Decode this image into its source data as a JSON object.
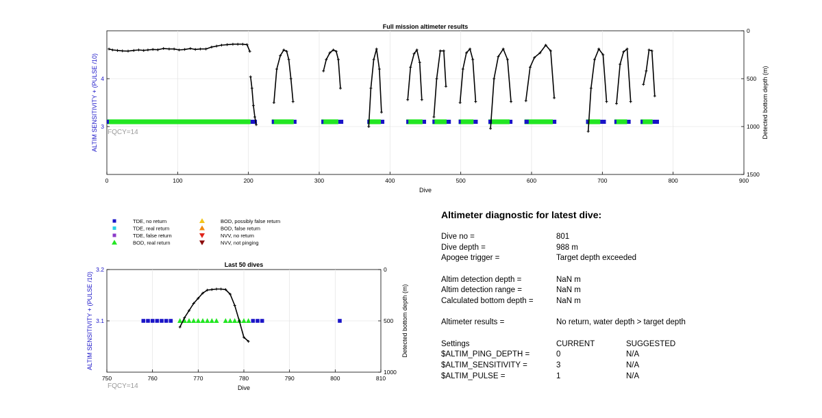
{
  "chart_data": [
    {
      "id": "full",
      "type": "scatter",
      "title": "Full mission altimeter results",
      "xlabel": "Dive",
      "ylabel": "ALTIM SENSITIVITY + (PULSE /10)",
      "y2label": "Detected bottom depth (m)",
      "xlim": [
        0,
        900
      ],
      "ylim": [
        2,
        5
      ],
      "y2lim": [
        1500,
        0
      ],
      "xticks": [
        0,
        100,
        200,
        300,
        400,
        500,
        600,
        700,
        800,
        900
      ],
      "yticks": [
        3,
        4
      ],
      "y2ticks": [
        0,
        500,
        1000,
        1500
      ],
      "grid": true,
      "annotation": "FQCY=14",
      "bod_real_return_segments": [
        [
          0,
          203
        ],
        [
          233,
          264
        ],
        [
          303,
          327
        ],
        [
          368,
          387
        ],
        [
          423,
          446
        ],
        [
          460,
          480
        ],
        [
          497,
          518
        ],
        [
          539,
          569
        ],
        [
          590,
          630
        ],
        [
          677,
          697
        ],
        [
          717,
          735
        ],
        [
          754,
          771
        ]
      ],
      "tde_no_return_segments": [
        [
          0,
          2
        ],
        [
          203,
          212
        ],
        [
          233,
          236
        ],
        [
          264,
          268
        ],
        [
          303,
          306
        ],
        [
          327,
          334
        ],
        [
          368,
          371
        ],
        [
          387,
          392
        ],
        [
          423,
          426
        ],
        [
          446,
          451
        ],
        [
          460,
          463
        ],
        [
          480,
          486
        ],
        [
          497,
          500
        ],
        [
          518,
          524
        ],
        [
          539,
          544
        ],
        [
          569,
          573
        ],
        [
          590,
          596
        ],
        [
          630,
          635
        ],
        [
          677,
          680
        ],
        [
          697,
          705
        ],
        [
          717,
          720
        ],
        [
          735,
          740
        ],
        [
          754,
          757
        ],
        [
          771,
          780
        ]
      ],
      "bottom_depth": [
        {
          "x": [
            3,
            8,
            15,
            22,
            30,
            38,
            45,
            52,
            58,
            65,
            72,
            80,
            88,
            95,
            102,
            110,
            118,
            125,
            132,
            140,
            148,
            155,
            162,
            170,
            178,
            185,
            192,
            198,
            202
          ],
          "y": [
            190,
            200,
            205,
            210,
            212,
            205,
            200,
            205,
            200,
            195,
            198,
            185,
            190,
            190,
            200,
            195,
            185,
            195,
            190,
            190,
            170,
            160,
            150,
            145,
            140,
            140,
            140,
            145,
            215
          ]
        },
        {
          "x": [
            203,
            205,
            207,
            209,
            211
          ],
          "y": [
            480,
            600,
            780,
            900,
            980
          ]
        },
        {
          "x": [
            236,
            240,
            245,
            250,
            254,
            257,
            260,
            263
          ],
          "y": [
            750,
            400,
            260,
            200,
            215,
            300,
            500,
            740
          ]
        },
        {
          "x": [
            306,
            310,
            315,
            320,
            324,
            327,
            330
          ],
          "y": [
            420,
            300,
            230,
            200,
            215,
            300,
            600
          ]
        },
        {
          "x": [
            370,
            373,
            377,
            381,
            385,
            388
          ],
          "y": [
            1000,
            600,
            300,
            190,
            400,
            850
          ]
        },
        {
          "x": [
            425,
            429,
            434,
            438,
            442,
            445
          ],
          "y": [
            720,
            380,
            240,
            200,
            330,
            720
          ]
        },
        {
          "x": [
            462,
            466,
            471,
            476,
            479
          ],
          "y": [
            900,
            500,
            210,
            210,
            580
          ]
        },
        {
          "x": [
            499,
            503,
            508,
            513,
            517,
            521
          ],
          "y": [
            750,
            400,
            230,
            190,
            300,
            740
          ]
        },
        {
          "x": [
            542,
            547,
            553,
            560,
            566,
            571
          ],
          "y": [
            1020,
            500,
            270,
            190,
            300,
            740
          ]
        },
        {
          "x": [
            592,
            598,
            604,
            612,
            620,
            627,
            632
          ],
          "y": [
            730,
            380,
            280,
            230,
            150,
            210,
            700
          ]
        },
        {
          "x": [
            680,
            684,
            689,
            695,
            701,
            706
          ],
          "y": [
            1050,
            600,
            300,
            190,
            250,
            740
          ]
        },
        {
          "x": [
            720,
            725,
            730,
            735,
            740
          ],
          "y": [
            760,
            350,
            220,
            190,
            740
          ]
        },
        {
          "x": [
            758,
            762,
            766,
            770,
            774
          ],
          "y": [
            560,
            420,
            200,
            210,
            680
          ]
        }
      ]
    },
    {
      "id": "last50",
      "type": "scatter",
      "title": "Last 50 dives",
      "xlabel": "Dive",
      "ylabel": "ALTIM SENSITIVITY + (PULSE /10)",
      "y2label": "Detected bottom depth (m)",
      "xlim": [
        750,
        810
      ],
      "ylim": [
        3.0,
        3.2
      ],
      "y2lim": [
        1000,
        0
      ],
      "xticks": [
        750,
        760,
        770,
        780,
        790,
        800,
        810
      ],
      "yticks": [
        3.1,
        3.2
      ],
      "y2ticks": [
        0,
        500,
        1000
      ],
      "grid": true,
      "annotation": "FQCY=14",
      "tde_no_return": {
        "x": [
          758,
          759,
          760,
          761,
          762,
          763,
          764,
          782,
          783,
          784,
          801
        ],
        "y": [
          3.1,
          3.1,
          3.1,
          3.1,
          3.1,
          3.1,
          3.1,
          3.1,
          3.1,
          3.1,
          3.1
        ]
      },
      "bod_real_return": {
        "x": [
          766,
          767,
          768,
          769,
          770,
          771,
          772,
          773,
          774,
          776,
          777,
          778,
          779,
          780,
          781
        ],
        "y": [
          3.1,
          3.1,
          3.1,
          3.1,
          3.1,
          3.1,
          3.1,
          3.1,
          3.1,
          3.1,
          3.1,
          3.1,
          3.1,
          3.1,
          3.1
        ]
      },
      "bottom_depth": {
        "x": [
          766,
          767,
          768,
          769,
          770,
          771,
          772,
          773,
          774,
          775,
          776,
          777,
          778,
          779,
          780,
          781
        ],
        "y": [
          560,
          470,
          400,
          330,
          280,
          230,
          200,
          195,
          190,
          190,
          195,
          240,
          350,
          500,
          660,
          700
        ]
      }
    }
  ],
  "legend": {
    "items": [
      {
        "label": "TDE, no return",
        "marker": "square",
        "color": "#1a14c8"
      },
      {
        "label": "TDE, real return",
        "marker": "square",
        "color": "#2bd1e6"
      },
      {
        "label": "TDE, false return",
        "marker": "square",
        "color": "#8b3ac9"
      },
      {
        "label": "BOD, real return",
        "marker": "triangle-up",
        "color": "#22e622"
      },
      {
        "label": "BOD, possibly false return",
        "marker": "triangle-up",
        "color": "#f2c41a"
      },
      {
        "label": "BOD, false return",
        "marker": "triangle-up",
        "color": "#f08a10"
      },
      {
        "label": "NVV, no return",
        "marker": "triangle-down",
        "color": "#e0241a"
      },
      {
        "label": "NVV, not pinging",
        "marker": "triangle-down",
        "color": "#8b0a0a"
      }
    ]
  },
  "diagnostic": {
    "title": "Altimeter diagnostic for latest dive:",
    "dive_no_label": "Dive no =",
    "dive_no": "801",
    "dive_depth_label": "Dive depth =",
    "dive_depth": "988 m",
    "apogee_label": "Apogee trigger =",
    "apogee": "Target depth exceeded",
    "detect_depth_label": "Altim detection depth =",
    "detect_depth": "NaN m",
    "detect_range_label": "Altim detection range =",
    "detect_range": "NaN m",
    "calc_depth_label": "Calculated bottom depth =",
    "calc_depth": "NaN m",
    "results_label": "Altimeter results =",
    "results": "No return, water depth > target depth",
    "settings_label": "Settings",
    "current_label": "CURRENT",
    "suggested_label": "SUGGESTED",
    "settings": [
      {
        "name": "$ALTIM_PING_DEPTH =",
        "current": "0",
        "suggested": "N/A"
      },
      {
        "name": "$ALTIM_SENSITIVITY =",
        "current": "3",
        "suggested": "N/A"
      },
      {
        "name": "$ALTIM_PULSE =",
        "current": "1",
        "suggested": "N/A"
      }
    ]
  },
  "colors": {
    "axis_label_blue": "#1a14c8",
    "annotation_gray": "#9a9a9a",
    "grid": "#e6e6e6",
    "depth_line": "#000000"
  }
}
